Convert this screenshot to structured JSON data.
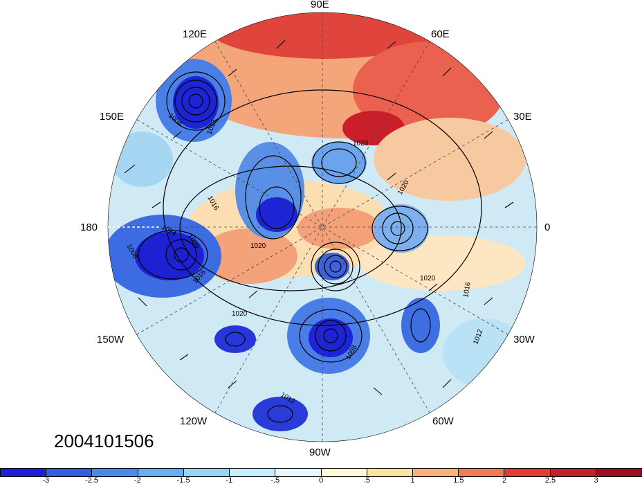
{
  "title": "",
  "timestamp": "2004101506",
  "longitude_labels": {
    "lon_90E": "90E",
    "lon_60E": "60E",
    "lon_120E": "120E",
    "lon_150E": "150E",
    "lon_30E": "30E",
    "lon_180": "180",
    "lon_0": "0",
    "lon_150W": "150W",
    "lon_30W": "30W",
    "lon_120W": "120W",
    "lon_60W": "60W",
    "lon_90W": "90W"
  },
  "contour_labels": [
    "1004",
    "1012",
    "1008",
    "1016",
    "1020",
    "1024",
    "1028",
    "1020",
    "1016",
    "1012",
    "1008",
    "1020",
    "1020",
    "1016",
    "1012",
    "1020"
  ],
  "colorbar": {
    "tick_labels": [
      "-3",
      "-2.5",
      "-2",
      "-1.5",
      "-1",
      "-.5",
      "0",
      ".5",
      "1",
      "1.5",
      "2",
      "2.5",
      "3"
    ],
    "colors": [
      "#1b1fd8",
      "#2f5fe0",
      "#4a8ae8",
      "#69aef0",
      "#97d6f7",
      "#c6effb",
      "#e7f8fb",
      "#fffbd8",
      "#fde3a3",
      "#f8b27c",
      "#ef7c55",
      "#e13c33",
      "#c51f2a",
      "#a00d22"
    ]
  },
  "colors": {
    "ocean_cold": "#2a49d8",
    "neutral": "#eaf6f8",
    "warm": "#e23a32"
  }
}
